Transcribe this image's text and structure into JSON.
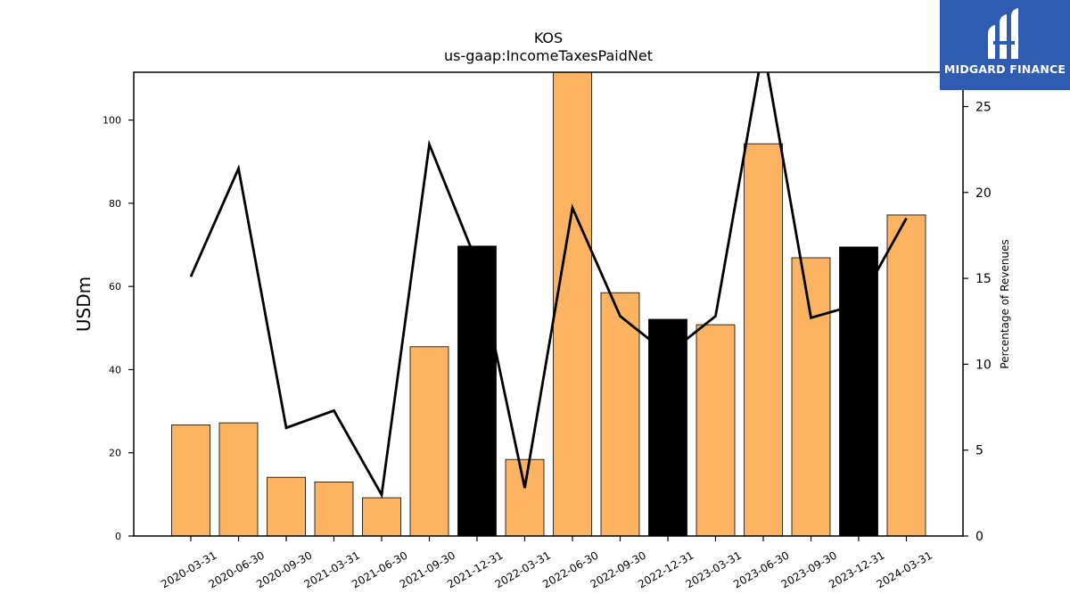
{
  "chart_data": {
    "type": "bar",
    "title": "KOS",
    "subtitle": "us-gaap:IncomeTaxesPaidNet",
    "ylabel": "USDm",
    "y2label": "Percentage of Revenues",
    "ylim": [
      0,
      111.5
    ],
    "y2lim": [
      0,
      27
    ],
    "yticks": [
      0,
      20,
      40,
      60,
      80,
      100
    ],
    "y2ticks": [
      0,
      5,
      10,
      15,
      20,
      25
    ],
    "categories": [
      "2020-03-31",
      "2020-06-30",
      "2020-09-30",
      "2021-03-31",
      "2021-06-30",
      "2021-09-30",
      "2021-12-31",
      "2022-03-31",
      "2022-06-30",
      "2022-09-30",
      "2022-12-31",
      "2023-03-31",
      "2023-06-30",
      "2023-09-30",
      "2023-12-31",
      "2024-03-31"
    ],
    "series": [
      {
        "type": "bar",
        "values": [
          26.7,
          27.2,
          14.1,
          13.0,
          9.2,
          45.5,
          69.7,
          18.4,
          112.0,
          58.5,
          52.1,
          50.8,
          94.3,
          66.9,
          69.5,
          77.2
        ],
        "colors": [
          "#fdb462",
          "#fdb462",
          "#fdb462",
          "#fdb462",
          "#fdb462",
          "#fdb462",
          "#000000",
          "#fdb462",
          "#fdb462",
          "#fdb462",
          "#000000",
          "#fdb462",
          "#fdb462",
          "#fdb462",
          "#000000",
          "#fdb462"
        ]
      },
      {
        "type": "line",
        "axis": "right",
        "color": "#000000",
        "values": [
          15.1,
          21.4,
          6.3,
          7.3,
          2.4,
          22.8,
          15.9,
          2.8,
          19.1,
          12.8,
          10.6,
          12.8,
          28.5,
          12.7,
          13.5,
          18.5
        ]
      }
    ]
  },
  "logo": {
    "text": "MIDGARD FINANCE"
  }
}
